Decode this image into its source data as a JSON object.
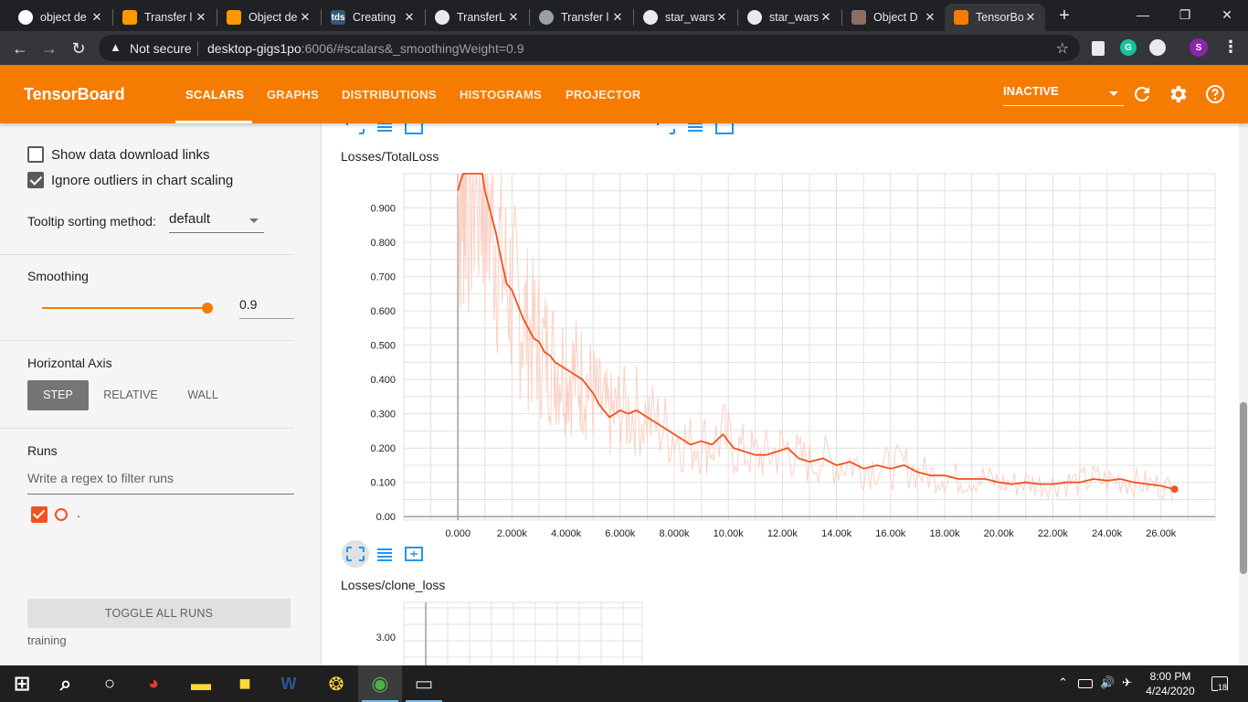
{
  "browser": {
    "tabs": [
      {
        "title": "object de",
        "favicon": "google-icon",
        "active": false
      },
      {
        "title": "Transfer l",
        "favicon": "tensorflow-icon",
        "active": false
      },
      {
        "title": "Object de",
        "favicon": "tensorflow-icon",
        "active": false
      },
      {
        "title": "Creating",
        "favicon": "tds-icon",
        "favicon_text": "tds",
        "active": false
      },
      {
        "title": "TransferL",
        "favicon": "github-icon",
        "active": false
      },
      {
        "title": "Transfer l",
        "favicon": "globe-icon",
        "active": false
      },
      {
        "title": "star_wars",
        "favicon": "github-icon",
        "active": false
      },
      {
        "title": "star_wars",
        "favicon": "github-icon",
        "active": false
      },
      {
        "title": "Object D",
        "favicon": "image-icon",
        "active": false
      },
      {
        "title": "TensorBo",
        "favicon": "tensorboard-icon",
        "active": true
      }
    ],
    "security_label": "Not secure",
    "url_host": "desktop-gigs1po",
    "url_rest": ":6006/#scalars&_smoothingWeight=0.9",
    "profile_initial": "S",
    "grammarly_initial": "G"
  },
  "tensorboard": {
    "title": "TensorBoard",
    "nav": [
      "SCALARS",
      "GRAPHS",
      "DISTRIBUTIONS",
      "HISTOGRAMS",
      "PROJECTOR"
    ],
    "active_nav": "SCALARS",
    "status_select": "INACTIVE"
  },
  "sidebar": {
    "show_download_links": {
      "label": "Show data download links",
      "checked": false
    },
    "ignore_outliers": {
      "label": "Ignore outliers in chart scaling",
      "checked": true
    },
    "tooltip_label": "Tooltip sorting method:",
    "tooltip_value": "default",
    "smoothing_label": "Smoothing",
    "smoothing_value": "0.9",
    "smoothing_fraction": 0.9,
    "horizontal_axis_label": "Horizontal Axis",
    "axis_options": [
      "STEP",
      "RELATIVE",
      "WALL"
    ],
    "axis_selected": "STEP",
    "runs_label": "Runs",
    "runs_filter_placeholder": "Write a regex to filter runs",
    "runs": [
      {
        "name": ".",
        "checked": true,
        "color": "#f4511e"
      }
    ],
    "toggle_all_runs": "TOGGLE ALL RUNS",
    "footer_run": "training"
  },
  "colors": {
    "accent": "#f57c00",
    "series": "#f4511e",
    "series_raw": "#fbd0c2"
  },
  "chart_data": [
    {
      "type": "line",
      "title": "Losses/TotalLoss",
      "xlabel": "",
      "ylabel": "",
      "x_tick_labels": [
        "0.000",
        "2.000k",
        "4.000k",
        "6.000k",
        "8.000k",
        "10.00k",
        "12.00k",
        "14.00k",
        "16.00k",
        "18.00k",
        "20.00k",
        "22.00k",
        "24.00k",
        "26.00k"
      ],
      "y_tick_labels": [
        "0.00",
        "0.100",
        "0.200",
        "0.300",
        "0.400",
        "0.500",
        "0.600",
        "0.700",
        "0.800",
        "0.900"
      ],
      "xlim": [
        -2000,
        28000
      ],
      "ylim": [
        -0.01,
        1.0
      ],
      "grid": true,
      "series": [
        {
          "name": ".",
          "smoothed": true,
          "x": [
            0,
            100,
            200,
            300,
            500,
            700,
            900,
            1000,
            1200,
            1400,
            1600,
            1800,
            2000,
            2200,
            2400,
            2600,
            2800,
            3000,
            3200,
            3400,
            3600,
            3800,
            4000,
            4200,
            4400,
            4600,
            4800,
            5000,
            5200,
            5400,
            5600,
            5800,
            6000,
            6300,
            6600,
            7000,
            7400,
            7800,
            8200,
            8600,
            9000,
            9400,
            9800,
            10200,
            10600,
            11000,
            11400,
            11800,
            12200,
            12600,
            13000,
            13500,
            14000,
            14500,
            15000,
            15500,
            16000,
            16500,
            17000,
            17500,
            18000,
            18500,
            19000,
            19500,
            20000,
            20500,
            21000,
            21500,
            22000,
            22500,
            23000,
            23500,
            24000,
            24500,
            25000,
            25500,
            26000,
            26500
          ],
          "values": [
            0.95,
            0.98,
            1.0,
            1.0,
            1.0,
            1.0,
            1.0,
            0.95,
            0.89,
            0.83,
            0.75,
            0.68,
            0.66,
            0.62,
            0.58,
            0.55,
            0.52,
            0.51,
            0.48,
            0.47,
            0.45,
            0.44,
            0.43,
            0.42,
            0.41,
            0.4,
            0.38,
            0.36,
            0.33,
            0.31,
            0.29,
            0.3,
            0.31,
            0.3,
            0.31,
            0.29,
            0.27,
            0.25,
            0.23,
            0.21,
            0.22,
            0.21,
            0.24,
            0.2,
            0.19,
            0.18,
            0.18,
            0.19,
            0.2,
            0.17,
            0.16,
            0.17,
            0.15,
            0.16,
            0.14,
            0.15,
            0.14,
            0.15,
            0.13,
            0.12,
            0.12,
            0.11,
            0.11,
            0.11,
            0.1,
            0.095,
            0.1,
            0.095,
            0.095,
            0.1,
            0.1,
            0.11,
            0.105,
            0.11,
            0.1,
            0.095,
            0.09,
            0.08
          ]
        }
      ]
    },
    {
      "type": "line",
      "title": "Losses/clone_loss",
      "y_tick_labels": [
        "3.00"
      ],
      "grid": true,
      "series": []
    }
  ],
  "taskbar": {
    "apps": [
      "start-icon",
      "search-icon",
      "task-view-icon",
      "paint-icon",
      "file-explorer-icon",
      "sticky-notes-icon",
      "word-icon",
      "python-icon",
      "chrome-icon",
      "terminal-icon"
    ],
    "time": "8:00 PM",
    "date": "4/24/2020",
    "notification_count": "18"
  }
}
